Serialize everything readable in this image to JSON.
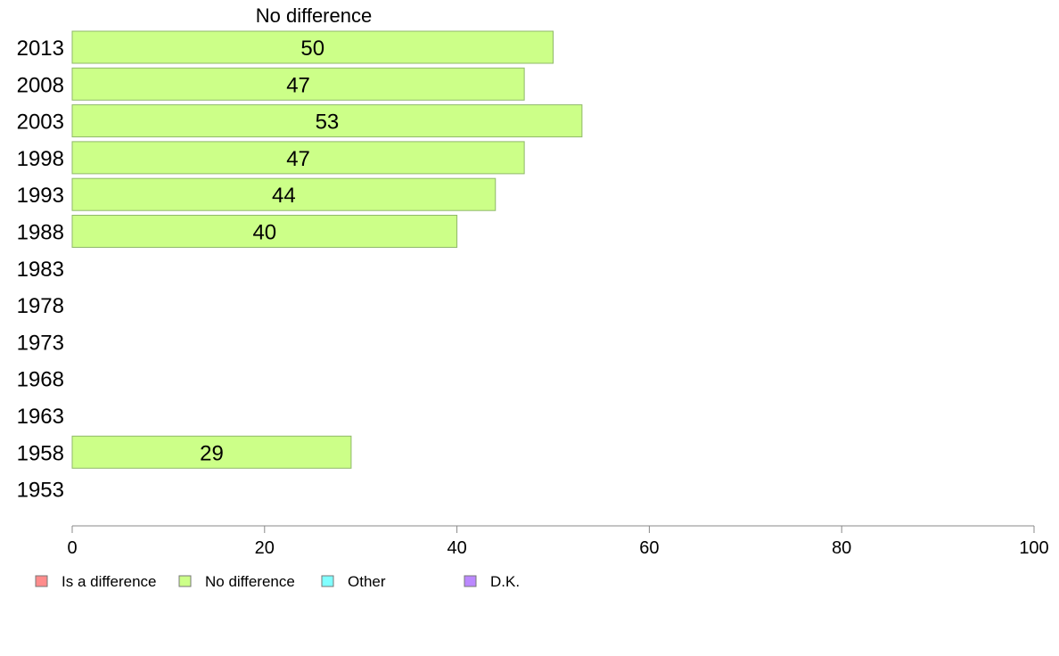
{
  "chart_data": {
    "type": "bar",
    "orientation": "horizontal",
    "title": "",
    "series_title": "No difference",
    "xlabel": "",
    "ylabel": "",
    "xlim": [
      0,
      100
    ],
    "xticks": [
      0,
      20,
      40,
      60,
      80,
      100
    ],
    "grid": false,
    "legend_position": "bottom-left",
    "categories": [
      "2013",
      "2008",
      "2003",
      "1998",
      "1993",
      "1988",
      "1983",
      "1978",
      "1973",
      "1968",
      "1963",
      "1958",
      "1953"
    ],
    "series": [
      {
        "name": "No difference",
        "color": "#ccff88",
        "values": [
          50,
          47,
          53,
          47,
          44,
          40,
          null,
          null,
          null,
          null,
          null,
          29,
          null
        ]
      }
    ],
    "legend": [
      {
        "label": "Is a difference",
        "color": "#ff8c8c"
      },
      {
        "label": "No difference",
        "color": "#ccff88"
      },
      {
        "label": "Other",
        "color": "#80ffff"
      },
      {
        "label": "D.K.",
        "color": "#bb88ff"
      }
    ]
  }
}
